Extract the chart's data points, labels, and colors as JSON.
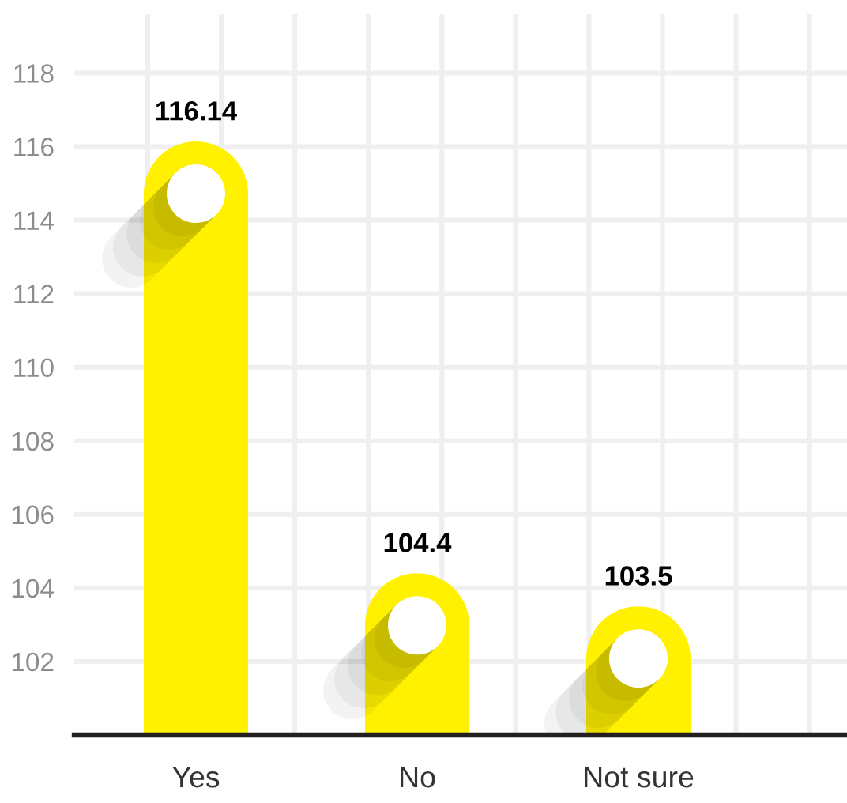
{
  "chart_data": {
    "type": "bar",
    "categories": [
      "Yes",
      "No",
      "Not sure"
    ],
    "values": [
      116.14,
      104.4,
      103.5
    ],
    "color": "#fff100",
    "ylim": [
      100,
      119.6
    ],
    "yticks": [
      102,
      104,
      106,
      108,
      110,
      112,
      114,
      116,
      118
    ],
    "data_labels": true,
    "grid": true
  }
}
